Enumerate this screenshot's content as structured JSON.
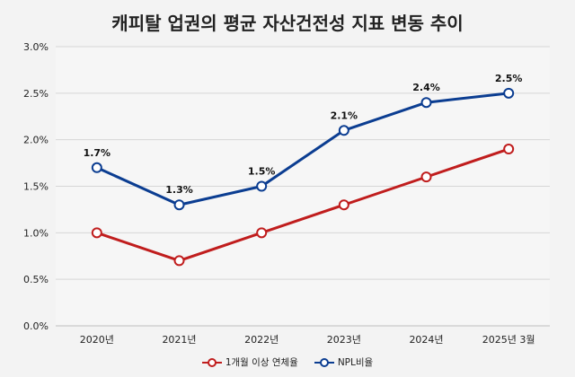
{
  "title": "캐피탈 업권의 평균 자산건전성 지표 변동 추이",
  "colors": {
    "series1": "#c01d1d",
    "series2": "#0b3d91",
    "grid": "#d6d6d6",
    "background": "#f3f3f3"
  },
  "chart_data": {
    "type": "line",
    "title": "캐피탈 업권의 평균 자산건전성 지표 변동 추이",
    "categories": [
      "2020년",
      "2021년",
      "2022년",
      "2023년",
      "2024년",
      "2025년 3월"
    ],
    "ylim": [
      0,
      3.0
    ],
    "yticks": [
      "0.0%",
      "0.5%",
      "1.0%",
      "1.5%",
      "2.0%",
      "2.5%",
      "3.0%"
    ],
    "grid": true,
    "legend_position": "bottom",
    "series": [
      {
        "name": "1개월 이상 연체율",
        "values": [
          1.0,
          0.7,
          1.0,
          1.3,
          1.6,
          1.9
        ],
        "labels": []
      },
      {
        "name": "NPL비율",
        "values": [
          1.7,
          1.3,
          1.5,
          2.1,
          2.4,
          2.5
        ],
        "labels": [
          "1.7%",
          "1.3%",
          "1.5%",
          "2.1%",
          "2.4%",
          "2.5%"
        ]
      }
    ]
  }
}
